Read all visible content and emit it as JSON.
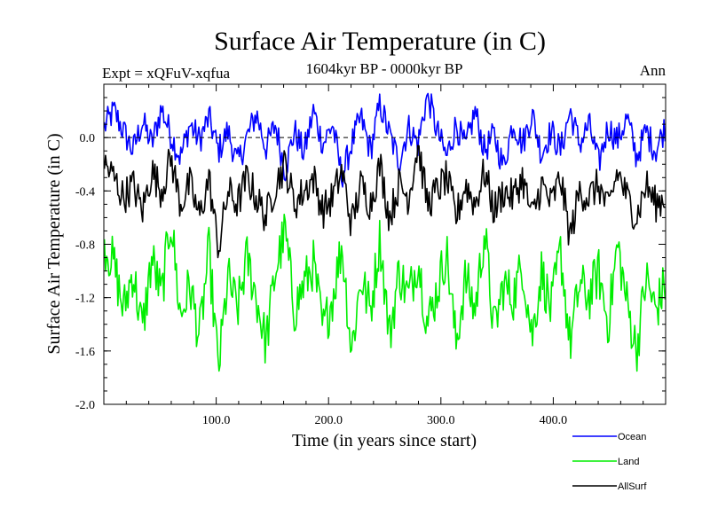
{
  "chart_data": {
    "type": "line",
    "title": "Surface Air Temperature (in C)",
    "subtitle": "1604kyr BP - 0000kyr BP",
    "experiment_label": "Expt = xQFuV-xqfua",
    "season_label": "Ann",
    "xlabel": "Time (in years since start)",
    "ylabel": "Surface Air Temperature (in C)",
    "xlim": [
      0,
      500
    ],
    "ylim": [
      -2.0,
      0.4
    ],
    "x_ticks": [
      100,
      200,
      300,
      400
    ],
    "x_tick_labels": [
      "100.0",
      "200.0",
      "300.0",
      "400.0"
    ],
    "y_ticks": [
      0.0,
      -0.4,
      -0.8,
      -1.2,
      -1.6,
      -2.0
    ],
    "y_tick_labels": [
      "0.0",
      "-0.4",
      "-0.8",
      "-1.2",
      "-1.6",
      "-2.0"
    ],
    "reference_line": {
      "y": 0.0,
      "style": "dashed"
    },
    "x_points_per_series": 500,
    "series": [
      {
        "name": "Ocean",
        "color": "#0000ff",
        "mean": -0.08,
        "range": [
          -0.37,
          0.33
        ],
        "values": [
          0.08,
          0.2,
          0.05,
          -0.1,
          0.12,
          -0.05,
          0.22,
          0.02,
          -0.15,
          0.1,
          -0.02,
          0.15,
          -0.1,
          0.05,
          -0.2,
          0.0,
          0.18,
          -0.08,
          0.1,
          -0.25,
          0.05,
          -0.12,
          0.2,
          -0.05,
          0.1,
          -0.3,
          -0.05,
          0.15,
          -0.1,
          0.25,
          0.02,
          -0.18,
          0.08,
          -0.05,
          0.33,
          0.05,
          -0.15,
          0.1,
          -0.08,
          0.2,
          -0.1,
          0.02,
          -0.22,
          0.12,
          -0.05,
          0.18,
          -0.12,
          0.05,
          -0.1,
          0.2,
          -0.05,
          0.1,
          -0.2,
          0.08,
          -0.02,
          0.15,
          -0.15,
          0.05,
          -0.1,
          0.08
        ]
      },
      {
        "name": "Land",
        "color": "#00ee00",
        "mean": -1.1,
        "range": [
          -1.75,
          -0.55
        ],
        "values": [
          -0.8,
          -0.95,
          -1.3,
          -1.0,
          -1.45,
          -0.9,
          -1.2,
          -0.6,
          -1.35,
          -1.1,
          -1.5,
          -0.85,
          -1.75,
          -1.05,
          -1.3,
          -0.9,
          -1.2,
          -1.55,
          -1.0,
          -0.7,
          -1.3,
          -1.1,
          -0.95,
          -1.45,
          -1.2,
          -0.8,
          -1.6,
          -1.05,
          -1.3,
          -0.75,
          -1.5,
          -1.0,
          -1.2,
          -0.9,
          -1.4,
          -1.15,
          -0.85,
          -1.55,
          -1.05,
          -1.3,
          -0.7,
          -1.45,
          -1.1,
          -1.2,
          -0.95,
          -1.5,
          -1.0,
          -1.3,
          -0.85,
          -1.55,
          -1.1,
          -1.2,
          -1.0,
          -1.4,
          -0.8,
          -1.25,
          -1.6,
          -1.05,
          -1.3,
          -1.1
        ]
      },
      {
        "name": "AllSurf",
        "color": "#000000",
        "mean": -0.42,
        "range": [
          -0.9,
          -0.05
        ],
        "values": [
          -0.2,
          -0.3,
          -0.45,
          -0.35,
          -0.55,
          -0.25,
          -0.4,
          -0.15,
          -0.5,
          -0.35,
          -0.6,
          -0.3,
          -0.85,
          -0.4,
          -0.5,
          -0.3,
          -0.45,
          -0.6,
          -0.35,
          -0.2,
          -0.5,
          -0.4,
          -0.3,
          -0.55,
          -0.45,
          -0.25,
          -0.65,
          -0.35,
          -0.5,
          -0.2,
          -0.6,
          -0.35,
          -0.45,
          -0.05,
          -0.5,
          -0.4,
          -0.3,
          -0.6,
          -0.35,
          -0.5,
          -0.25,
          -0.55,
          -0.4,
          -0.45,
          -0.3,
          -0.6,
          -0.35,
          -0.5,
          -0.3,
          -0.75,
          -0.4,
          -0.45,
          -0.35,
          -0.55,
          -0.25,
          -0.45,
          -0.6,
          -0.35,
          -0.5,
          -0.45
        ]
      }
    ],
    "legend": {
      "placement": "bottom-right, below plot",
      "entries": [
        {
          "label": "Ocean",
          "color": "#0000ff"
        },
        {
          "label": "Land",
          "color": "#00ee00"
        },
        {
          "label": "AllSurf",
          "color": "#000000"
        }
      ]
    }
  }
}
